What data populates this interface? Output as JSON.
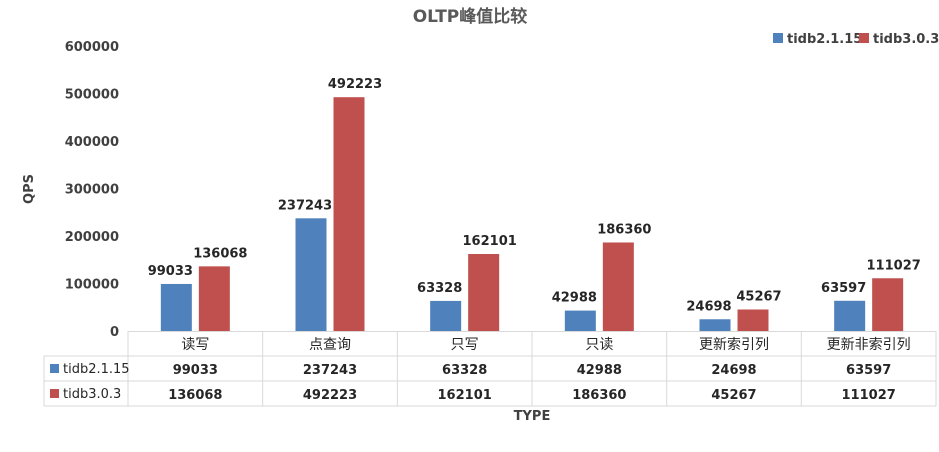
{
  "chart_data": {
    "type": "bar",
    "title": "OLTP峰值比较",
    "xlabel": "TYPE",
    "ylabel": "QPS",
    "categories": [
      "读写",
      "点查询",
      "只写",
      "只读",
      "更新索引列",
      "更新非索引列"
    ],
    "series": [
      {
        "name": "tidb2.1.15",
        "color": "#4f81bd",
        "values": [
          99033,
          237243,
          63328,
          42988,
          24698,
          63597
        ]
      },
      {
        "name": "tidb3.0.3",
        "color": "#c0504d",
        "values": [
          136068,
          492223,
          162101,
          186360,
          45267,
          111027
        ]
      }
    ],
    "ylim": [
      0,
      600000
    ],
    "yticks": [
      0,
      100000,
      200000,
      300000,
      400000,
      500000,
      600000
    ],
    "grid": false,
    "legend": "top-right",
    "data_table": true
  }
}
